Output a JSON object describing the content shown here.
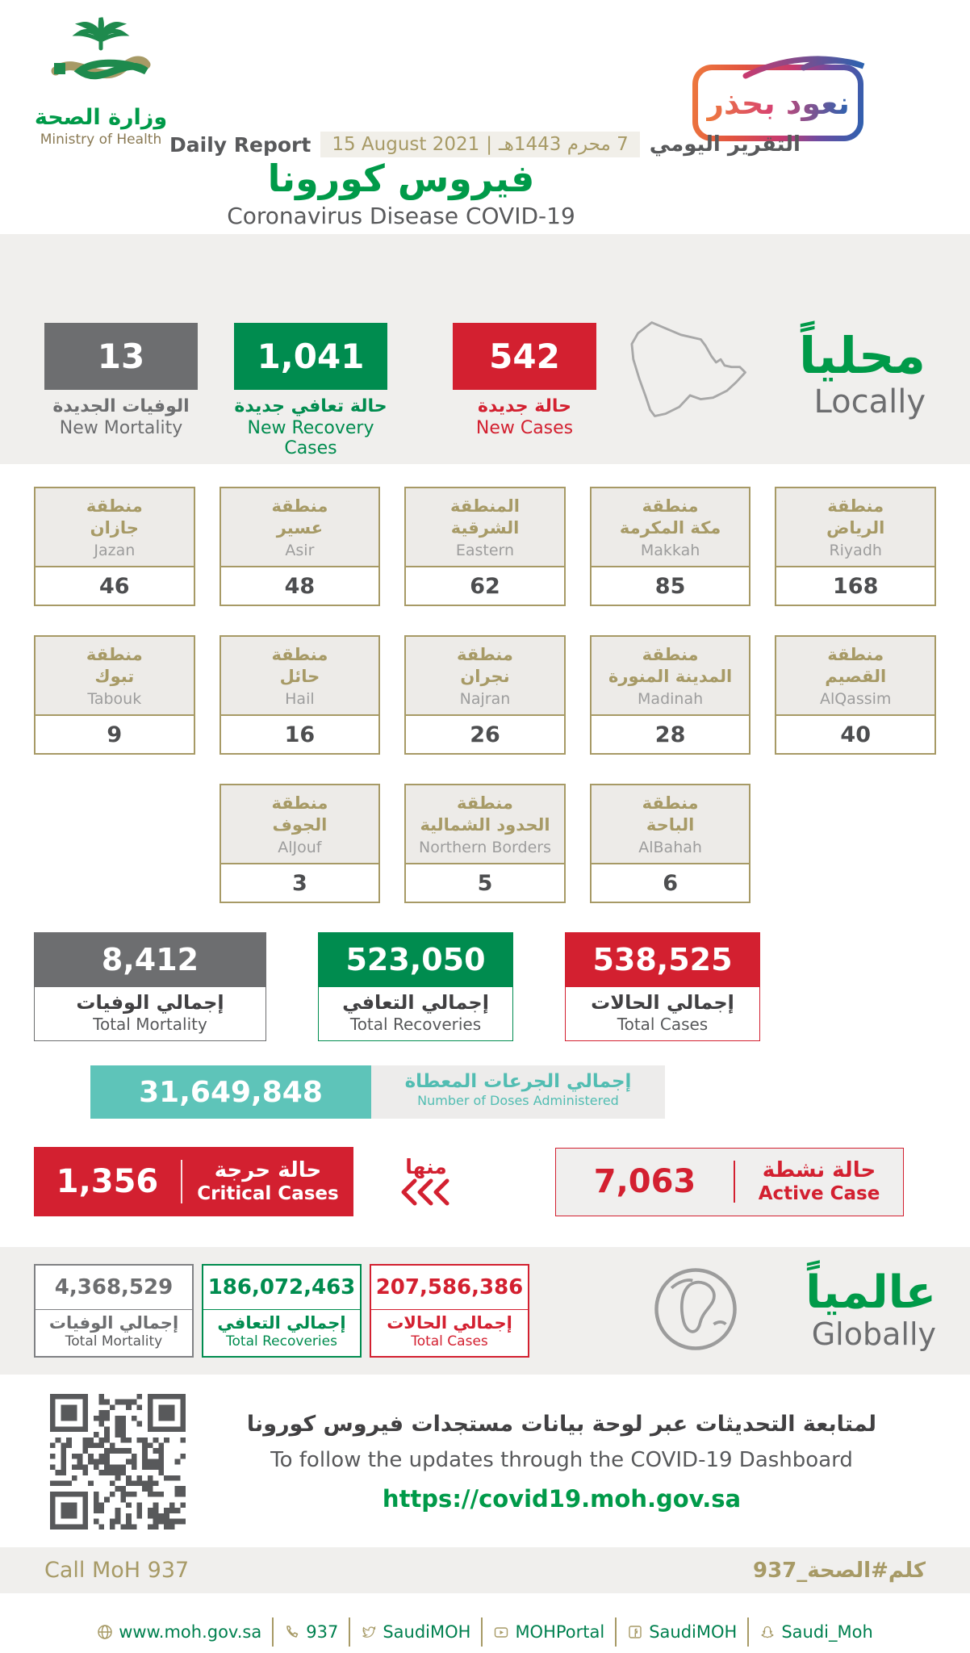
{
  "header": {
    "ministry_ar": "وزارة الصحة",
    "ministry_en": "Ministry of Health",
    "badge_ar": "نعود بحذر",
    "daily_report_en": "Daily Report",
    "daily_report_ar": "التقرير اليومي",
    "date_gregorian": "15 August 2021",
    "date_separator": "|",
    "date_hijri": "7 محرم 1443هـ",
    "title_ar": "فيروس كورونا",
    "title_en": "Coronavirus Disease COVID-19"
  },
  "colors": {
    "green": "#009a49",
    "card_green": "#008c4f",
    "red": "#d32030",
    "gray": "#6d6e70",
    "gold": "#a79a66",
    "teal": "#5ec4b9"
  },
  "local": {
    "heading_ar": "محلياً",
    "heading_en": "Locally",
    "new_mortality": {
      "value": "13",
      "label_ar": "الوفيات الجديدة",
      "label_en": "New Mortality"
    },
    "new_recoveries": {
      "value": "1,041",
      "label_ar": "حالة تعافي جديدة",
      "label_en": "New Recovery Cases"
    },
    "new_cases": {
      "value": "542",
      "label_ar": "حالة جديدة",
      "label_en": "New Cases"
    },
    "regions": [
      {
        "ar_prefix": "منطقة",
        "ar_name": "جازان",
        "en": "Jazan",
        "value": "46"
      },
      {
        "ar_prefix": "منطقة",
        "ar_name": "عسير",
        "en": "Asir",
        "value": "48"
      },
      {
        "ar_prefix": "المنطقة",
        "ar_name": "الشرقية",
        "en": "Eastern",
        "value": "62"
      },
      {
        "ar_prefix": "منطقة",
        "ar_name": "مكة المكرمة",
        "en": "Makkah",
        "value": "85"
      },
      {
        "ar_prefix": "منطقة",
        "ar_name": "الرياض",
        "en": "Riyadh",
        "value": "168"
      },
      {
        "ar_prefix": "منطقة",
        "ar_name": "تبوك",
        "en": "Tabouk",
        "value": "9"
      },
      {
        "ar_prefix": "منطقة",
        "ar_name": "حائل",
        "en": "Hail",
        "value": "16"
      },
      {
        "ar_prefix": "منطقة",
        "ar_name": "نجران",
        "en": "Najran",
        "value": "26"
      },
      {
        "ar_prefix": "منطقة",
        "ar_name": "المدينة المنورة",
        "en": "Madinah",
        "value": "28"
      },
      {
        "ar_prefix": "منطقة",
        "ar_name": "القصيم",
        "en": "AlQassim",
        "value": "40"
      },
      {
        "ar_prefix": "منطقة",
        "ar_name": "الجوف",
        "en": "AlJouf",
        "value": "3"
      },
      {
        "ar_prefix": "منطقة",
        "ar_name": "الحدود الشمالية",
        "en": "Northern Borders",
        "value": "5"
      },
      {
        "ar_prefix": "منطقة",
        "ar_name": "الباحة",
        "en": "AlBahah",
        "value": "6"
      }
    ],
    "total_mortality": {
      "value": "8,412",
      "label_ar": "إجمالي الوفيات",
      "label_en": "Total Mortality"
    },
    "total_recoveries": {
      "value": "523,050",
      "label_ar": "إجمالي التعافي",
      "label_en": "Total Recoveries"
    },
    "total_cases": {
      "value": "538,525",
      "label_ar": "إجمالي الحالات",
      "label_en": "Total Cases"
    },
    "doses": {
      "value": "31,649,848",
      "label_ar": "إجمالي الجرعات المعطاة",
      "label_en": "Number of Doses Administered"
    },
    "critical": {
      "value": "1,356",
      "label_ar": "حالة حرجة",
      "label_en": "Critical Cases"
    },
    "of_which_ar": "منها",
    "active": {
      "value": "7,063",
      "label_ar": "حالة نشطة",
      "label_en": "Active Case"
    }
  },
  "global": {
    "heading_ar": "عالمياً",
    "heading_en": "Globally",
    "total_mortality": {
      "value": "4,368,529",
      "label_ar": "إجمالي الوفيات",
      "label_en": "Total Mortality"
    },
    "total_recoveries": {
      "value": "186,072,463",
      "label_ar": "إجمالي التعافي",
      "label_en": "Total Recoveries"
    },
    "total_cases": {
      "value": "207,586,386",
      "label_ar": "إجمالي الحالات",
      "label_en": "Total Cases"
    }
  },
  "dashboard": {
    "text_ar": "لمتابعة التحديثات عبر لوحة بيانات مستجدات فيروس كورونا",
    "text_en": "To follow the updates through the COVID-19 Dashboard",
    "url": "https://covid19.moh.gov.sa"
  },
  "footer": {
    "call_en": "Call MoH 937",
    "call_ar": "كلم#الصحة_937",
    "social": [
      {
        "icon": "globe-icon",
        "label": "www.moh.gov.sa"
      },
      {
        "icon": "phone-icon",
        "label": "937"
      },
      {
        "icon": "twitter-icon",
        "label": "SaudiMOH"
      },
      {
        "icon": "youtube-icon",
        "label": "MOHPortal"
      },
      {
        "icon": "facebook-icon",
        "label": "SaudiMOH"
      },
      {
        "icon": "snapchat-icon",
        "label": "Saudi_Moh"
      }
    ]
  }
}
